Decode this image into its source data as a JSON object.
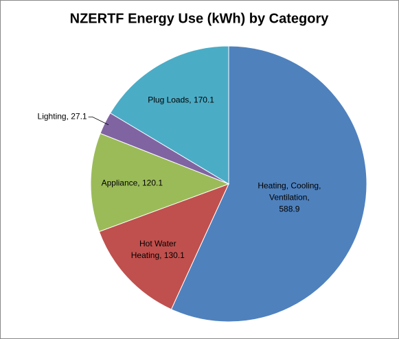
{
  "chart_data": {
    "type": "pie",
    "title": "NZERTF Energy Use (kWh) by Category",
    "categories": [
      "Heating, Cooling, Ventilation",
      "Hot Water Heating",
      "Appliance",
      "Lighting",
      "Plug Loads"
    ],
    "values": [
      588.9,
      130.1,
      120.1,
      27.1,
      170.1
    ],
    "value_labels": [
      "Heating, Cooling, Ventilation, 588.9",
      "Hot Water Heating, 130.1",
      "Appliance, 120.1",
      "Lighting, 27.1",
      "Plug Loads, 170.1"
    ],
    "colors": [
      "#4f81bd",
      "#c0504d",
      "#9bbb59",
      "#8064a2",
      "#4bacc6"
    ]
  }
}
